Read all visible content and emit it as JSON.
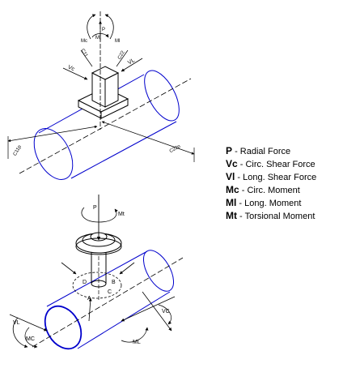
{
  "figure_top": {
    "labels": {
      "p": "P",
      "mc": "Mc",
      "ml": "Ml",
      "mt": "Mt",
      "c11": "C11",
      "c22": "C22",
      "vc": "Vc",
      "vl": "VL",
      "c11p": "C11p",
      "c22p": "C22p"
    }
  },
  "figure_bottom": {
    "labels": {
      "p": "P",
      "mt": "Mt",
      "a": "A",
      "b": "B",
      "c": "C",
      "d": "D",
      "vl": "VL",
      "mc": "MC",
      "ml": "ML",
      "vc": "VC"
    }
  },
  "legend": [
    {
      "symbol": "P",
      "description": " - Radial Force"
    },
    {
      "symbol": "Vc",
      "description": " - Circ. Shear Force"
    },
    {
      "symbol": "Vl",
      "description": " - Long. Shear Force"
    },
    {
      "symbol": "Mc",
      "description": " - Circ. Moment"
    },
    {
      "symbol": "Ml",
      "description": " - Long. Moment"
    },
    {
      "symbol": "Mt",
      "description": " - Torsional Moment"
    }
  ],
  "colors": {
    "pipe_outline": "#0000cc",
    "line": "#000000"
  }
}
